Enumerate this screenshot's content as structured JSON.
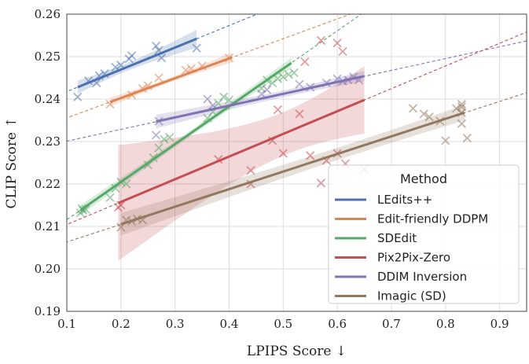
{
  "chart_data": {
    "type": "scatter",
    "xlabel": "LPIPS Score ↓",
    "ylabel": "CLIP Score ↑",
    "xlim": [
      0.1,
      0.95
    ],
    "ylim": [
      0.19,
      0.26
    ],
    "xticks": [
      "0.1",
      "0.2",
      "0.3",
      "0.4",
      "0.5",
      "0.6",
      "0.7",
      "0.8",
      "0.9"
    ],
    "yticks": [
      "0.19",
      "0.20",
      "0.21",
      "0.22",
      "0.23",
      "0.24",
      "0.25",
      "0.26"
    ],
    "grid": true,
    "legend": {
      "title": "Method",
      "position": "bottom-right"
    },
    "series": [
      {
        "name": "LEdits++",
        "color": "#4c72b0",
        "points": [
          [
            0.12,
            0.2405
          ],
          [
            0.14,
            0.2443
          ],
          [
            0.155,
            0.2438
          ],
          [
            0.16,
            0.2455
          ],
          [
            0.17,
            0.246
          ],
          [
            0.19,
            0.2475
          ],
          [
            0.2,
            0.248
          ],
          [
            0.215,
            0.2495
          ],
          [
            0.22,
            0.2502
          ],
          [
            0.265,
            0.2525
          ],
          [
            0.27,
            0.2515
          ],
          [
            0.275,
            0.2497
          ],
          [
            0.34,
            0.252
          ]
        ],
        "fit": {
          "x": [
            0.12,
            0.34
          ],
          "y": [
            0.2428,
            0.2542
          ]
        },
        "extended": {
          "x": [
            0.0,
            0.95
          ],
          "y": [
            0.2366,
            0.2858
          ]
        }
      },
      {
        "name": "Edit-friendly DDPM",
        "color": "#dd8452",
        "points": [
          [
            0.18,
            0.2388
          ],
          [
            0.22,
            0.241
          ],
          [
            0.24,
            0.2425
          ],
          [
            0.25,
            0.2432
          ],
          [
            0.27,
            0.245
          ],
          [
            0.32,
            0.2468
          ],
          [
            0.33,
            0.2472
          ],
          [
            0.35,
            0.2478
          ],
          [
            0.4,
            0.2497
          ]
        ],
        "fit": {
          "x": [
            0.18,
            0.405
          ],
          "y": [
            0.2393,
            0.2498
          ]
        },
        "extended": {
          "x": [
            0.0,
            0.95
          ],
          "y": [
            0.2309,
            0.2752
          ]
        }
      },
      {
        "name": "SDEdit",
        "color": "#55a868",
        "points": [
          [
            0.125,
            0.2132
          ],
          [
            0.13,
            0.2138
          ],
          [
            0.128,
            0.2142
          ],
          [
            0.135,
            0.214
          ],
          [
            0.18,
            0.2168
          ],
          [
            0.19,
            0.219
          ],
          [
            0.2,
            0.2205
          ],
          [
            0.21,
            0.22
          ],
          [
            0.25,
            0.2245
          ],
          [
            0.26,
            0.2262
          ],
          [
            0.27,
            0.2285
          ],
          [
            0.28,
            0.2305
          ],
          [
            0.29,
            0.231
          ],
          [
            0.36,
            0.2355
          ],
          [
            0.37,
            0.237
          ],
          [
            0.38,
            0.239
          ],
          [
            0.39,
            0.2405
          ],
          [
            0.4,
            0.2398
          ],
          [
            0.46,
            0.2425
          ],
          [
            0.47,
            0.2445
          ],
          [
            0.48,
            0.2438
          ],
          [
            0.49,
            0.2448
          ],
          [
            0.5,
            0.2452
          ],
          [
            0.51,
            0.2458
          ],
          [
            0.52,
            0.2462
          ]
        ],
        "fit": {
          "x": [
            0.125,
            0.515
          ],
          "y": [
            0.2138,
            0.2485
          ]
        },
        "extended": {
          "x": [
            0.0,
            0.95
          ],
          "y": [
            0.2027,
            0.2872
          ]
        }
      },
      {
        "name": "Pix2Pix-Zero",
        "color": "#c44e52",
        "points": [
          [
            0.195,
            0.2145
          ],
          [
            0.2,
            0.215
          ],
          [
            0.38,
            0.2258
          ],
          [
            0.44,
            0.2232
          ],
          [
            0.44,
            0.22
          ],
          [
            0.48,
            0.2302
          ],
          [
            0.49,
            0.2375
          ],
          [
            0.5,
            0.2272
          ],
          [
            0.53,
            0.2365
          ],
          [
            0.55,
            0.2267
          ],
          [
            0.57,
            0.2202
          ],
          [
            0.58,
            0.2255
          ],
          [
            0.6,
            0.2272
          ],
          [
            0.6,
            0.2532
          ],
          [
            0.61,
            0.2512
          ],
          [
            0.615,
            0.2248
          ],
          [
            0.65,
            0.2235
          ],
          [
            0.57,
            0.2538
          ],
          [
            0.54,
            0.2488
          ]
        ],
        "fit": {
          "x": [
            0.195,
            0.65
          ],
          "y": [
            0.2155,
            0.2398
          ]
        },
        "extended": {
          "x": [
            0.0,
            0.95
          ],
          "y": [
            0.2051,
            0.2558
          ]
        }
      },
      {
        "name": "DDIM Inversion",
        "color": "#8172b3",
        "points": [
          [
            0.265,
            0.2315
          ],
          [
            0.27,
            0.2348
          ],
          [
            0.36,
            0.24
          ],
          [
            0.37,
            0.2385
          ],
          [
            0.46,
            0.2412
          ],
          [
            0.47,
            0.2422
          ],
          [
            0.53,
            0.2435
          ],
          [
            0.55,
            0.2428
          ],
          [
            0.58,
            0.2438
          ],
          [
            0.6,
            0.2448
          ],
          [
            0.61,
            0.2442
          ],
          [
            0.62,
            0.2445
          ],
          [
            0.63,
            0.2452
          ],
          [
            0.64,
            0.2445
          ]
        ],
        "fit": {
          "x": [
            0.265,
            0.65
          ],
          "y": [
            0.2347,
            0.2454
          ]
        },
        "extended": {
          "x": [
            0.0,
            0.95
          ],
          "y": [
            0.2273,
            0.2537
          ]
        }
      },
      {
        "name": "Imagic (SD)",
        "color": "#937860",
        "points": [
          [
            0.2,
            0.2098
          ],
          [
            0.21,
            0.2115
          ],
          [
            0.22,
            0.2112
          ],
          [
            0.23,
            0.2118
          ],
          [
            0.24,
            0.2115
          ],
          [
            0.74,
            0.2378
          ],
          [
            0.76,
            0.2365
          ],
          [
            0.77,
            0.2358
          ],
          [
            0.79,
            0.2348
          ],
          [
            0.82,
            0.2378
          ],
          [
            0.83,
            0.2388
          ],
          [
            0.83,
            0.2382
          ],
          [
            0.83,
            0.2368
          ],
          [
            0.8,
            0.2302
          ],
          [
            0.84,
            0.2308
          ],
          [
            0.83,
            0.2342
          ]
        ],
        "fit": {
          "x": [
            0.2,
            0.835
          ],
          "y": [
            0.2105,
            0.2368
          ]
        },
        "extended": {
          "x": [
            0.0,
            0.95
          ],
          "y": [
            0.2022,
            0.2415
          ]
        }
      }
    ]
  }
}
